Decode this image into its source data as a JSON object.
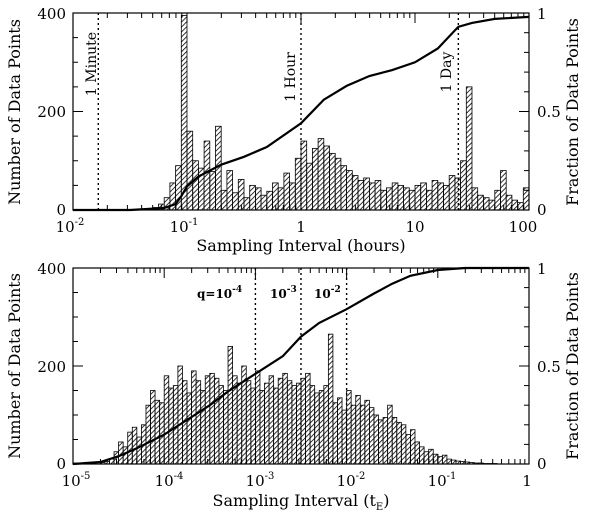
{
  "chart_data": [
    {
      "type": "bar",
      "xscale": "log",
      "xlim": [
        0.01,
        100
      ],
      "ylim": [
        0,
        400
      ],
      "y2lim": [
        0,
        1
      ],
      "xlabel": "Sampling Interval (hours)",
      "ylabel": "Number of Data Points",
      "y2label": "Fraction of Data Points",
      "x_tick_labels": [
        "10",
        "-2",
        "10",
        "-1",
        "1",
        "10",
        "100"
      ],
      "y_tick_labels": [
        "0",
        "200",
        "400"
      ],
      "y2_tick_labels": [
        "0",
        "0.5",
        "1"
      ],
      "annotations": [
        "1 Minute",
        "1 Hour",
        "1 Day"
      ],
      "annotation_x": [
        0.01667,
        1,
        24
      ],
      "histogram": {
        "x_log10": [
          -2.0,
          -1.95,
          -1.9,
          -1.85,
          -1.8,
          -1.75,
          -1.7,
          -1.65,
          -1.6,
          -1.55,
          -1.5,
          -1.45,
          -1.4,
          -1.35,
          -1.3,
          -1.25,
          -1.2,
          -1.15,
          -1.1,
          -1.05,
          -1.0,
          -0.95,
          -0.9,
          -0.85,
          -0.8,
          -0.75,
          -0.7,
          -0.65,
          -0.6,
          -0.55,
          -0.5,
          -0.45,
          -0.4,
          -0.35,
          -0.3,
          -0.25,
          -0.2,
          -0.15,
          -0.1,
          -0.05,
          0.0,
          0.05,
          0.1,
          0.15,
          0.2,
          0.25,
          0.3,
          0.35,
          0.4,
          0.45,
          0.5,
          0.55,
          0.6,
          0.65,
          0.7,
          0.75,
          0.8,
          0.85,
          0.9,
          0.95,
          1.0,
          1.05,
          1.1,
          1.15,
          1.2,
          1.25,
          1.3,
          1.35,
          1.4,
          1.45,
          1.5,
          1.55,
          1.6,
          1.65,
          1.7,
          1.75,
          1.8,
          1.85,
          1.9,
          1.95
        ],
        "values": [
          0,
          0,
          0,
          0,
          0,
          0,
          0,
          0,
          0,
          0,
          0,
          0,
          0,
          2,
          5,
          12,
          25,
          55,
          90,
          395,
          160,
          100,
          85,
          140,
          78,
          170,
          40,
          80,
          35,
          62,
          25,
          50,
          45,
          30,
          38,
          55,
          45,
          75,
          55,
          105,
          140,
          95,
          125,
          145,
          130,
          115,
          105,
          90,
          80,
          70,
          60,
          65,
          55,
          60,
          40,
          45,
          55,
          50,
          45,
          40,
          50,
          55,
          40,
          60,
          55,
          50,
          70,
          65,
          100,
          250,
          45,
          30,
          25,
          20,
          40,
          80,
          30,
          20,
          15,
          45
        ]
      },
      "cumulative": {
        "x_log10": [
          -2.0,
          -1.5,
          -1.2,
          -1.1,
          -1.05,
          -1.0,
          -0.9,
          -0.8,
          -0.7,
          -0.5,
          -0.3,
          0.0,
          0.2,
          0.4,
          0.6,
          0.8,
          1.0,
          1.2,
          1.38,
          1.5,
          1.7,
          2.0
        ],
        "fraction": [
          0,
          0,
          0.01,
          0.03,
          0.07,
          0.12,
          0.17,
          0.2,
          0.23,
          0.27,
          0.32,
          0.44,
          0.56,
          0.63,
          0.68,
          0.71,
          0.75,
          0.82,
          0.93,
          0.95,
          0.97,
          0.98
        ]
      }
    },
    {
      "type": "bar",
      "xscale": "log",
      "xlim": [
        1e-05,
        1
      ],
      "ylim": [
        0,
        400
      ],
      "y2lim": [
        0,
        1
      ],
      "xlabel": "Sampling Interval (t",
      "xlabel_sub": "E",
      "xlabel_close": ")",
      "ylabel": "Number of Data Points",
      "y2label": "Fraction of Data Points",
      "x_tick_labels": [
        "10",
        "-5",
        "10",
        "-4",
        "10",
        "-3",
        "10",
        "-2",
        "10",
        "-1",
        "1"
      ],
      "y_tick_labels": [
        "0",
        "200",
        "400"
      ],
      "y2_tick_labels": [
        "0",
        "0.5",
        "1"
      ],
      "annotations": [
        "q=10",
        "-4",
        "10",
        "-3",
        "10",
        "-2"
      ],
      "annotation_x": [
        0.001,
        0.00316,
        0.01
      ],
      "histogram": {
        "x_log10": [
          -5.0,
          -4.95,
          -4.9,
          -4.85,
          -4.8,
          -4.75,
          -4.7,
          -4.65,
          -4.6,
          -4.55,
          -4.5,
          -4.45,
          -4.4,
          -4.35,
          -4.3,
          -4.25,
          -4.2,
          -4.15,
          -4.1,
          -4.05,
          -4.0,
          -3.95,
          -3.9,
          -3.85,
          -3.8,
          -3.75,
          -3.7,
          -3.65,
          -3.6,
          -3.55,
          -3.5,
          -3.45,
          -3.4,
          -3.35,
          -3.3,
          -3.25,
          -3.2,
          -3.15,
          -3.1,
          -3.05,
          -3.0,
          -2.95,
          -2.9,
          -2.85,
          -2.8,
          -2.75,
          -2.7,
          -2.65,
          -2.6,
          -2.55,
          -2.5,
          -2.45,
          -2.4,
          -2.35,
          -2.3,
          -2.25,
          -2.2,
          -2.15,
          -2.1,
          -2.05,
          -2.0,
          -1.95,
          -1.9,
          -1.85,
          -1.8,
          -1.75,
          -1.7,
          -1.65,
          -1.6,
          -1.55,
          -1.5,
          -1.45,
          -1.4,
          -1.35,
          -1.3,
          -1.25,
          -1.2,
          -1.15,
          -1.1,
          -1.05,
          -1.0,
          -0.95,
          -0.9,
          -0.85,
          -0.8,
          -0.75,
          -0.7,
          -0.65,
          -0.6,
          -0.55,
          -0.5,
          -0.45,
          -0.4,
          -0.35,
          -0.3,
          -0.25,
          -0.2,
          -0.15,
          -0.1,
          -0.05
        ],
        "values": [
          2,
          0,
          0,
          0,
          0,
          0,
          3,
          5,
          10,
          25,
          45,
          35,
          65,
          75,
          55,
          80,
          120,
          150,
          130,
          125,
          180,
          155,
          160,
          200,
          170,
          145,
          190,
          170,
          150,
          180,
          185,
          175,
          160,
          150,
          240,
          180,
          165,
          200,
          170,
          155,
          190,
          150,
          165,
          180,
          155,
          175,
          185,
          170,
          160,
          165,
          175,
          185,
          160,
          145,
          150,
          160,
          265,
          125,
          135,
          110,
          150,
          120,
          140,
          120,
          130,
          115,
          100,
          90,
          95,
          120,
          95,
          85,
          80,
          60,
          70,
          45,
          35,
          25,
          30,
          20,
          15,
          18,
          10,
          8,
          6,
          5,
          4,
          3,
          2,
          2,
          1,
          1,
          1,
          0,
          0,
          0,
          0,
          0,
          0,
          0
        ]
      },
      "cumulative": {
        "x_log10": [
          -5.0,
          -4.7,
          -4.5,
          -4.3,
          -4.0,
          -3.7,
          -3.5,
          -3.3,
          -3.0,
          -2.7,
          -2.5,
          -2.3,
          -2.0,
          -1.7,
          -1.5,
          -1.3,
          -1.0,
          -0.7,
          -0.5,
          0.0
        ],
        "fraction": [
          0,
          0.01,
          0.04,
          0.08,
          0.15,
          0.24,
          0.3,
          0.37,
          0.46,
          0.55,
          0.65,
          0.72,
          0.79,
          0.87,
          0.92,
          0.96,
          0.99,
          1.0,
          1.0,
          1.0
        ]
      }
    }
  ]
}
